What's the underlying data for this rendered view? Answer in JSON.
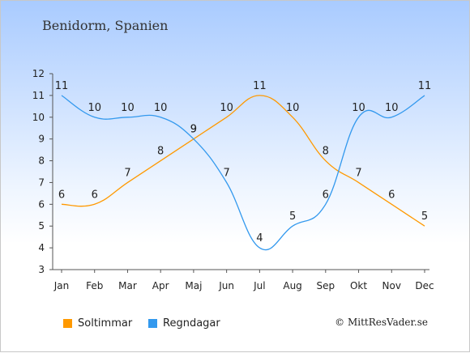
{
  "header": {
    "title": "Benidorm, Spanien"
  },
  "footer": {
    "credit": "© MittResVader.se"
  },
  "colors": {
    "soltimmar": "#ff9900",
    "regndagar": "#3399ee",
    "axis": "#555555",
    "text": "#222222"
  },
  "chart_data": {
    "type": "line",
    "title": "Benidorm, Spanien",
    "xlabel": "",
    "ylabel": "",
    "ylim": [
      3,
      12
    ],
    "yticks": [
      3,
      4,
      5,
      6,
      7,
      8,
      9,
      10,
      11,
      12
    ],
    "grid": false,
    "legend_position": "bottom-left",
    "categories": [
      "Jan",
      "Feb",
      "Mar",
      "Apr",
      "Maj",
      "Jun",
      "Jul",
      "Aug",
      "Sep",
      "Okt",
      "Nov",
      "Dec"
    ],
    "series": [
      {
        "name": "Soltimmar",
        "color": "#ff9900",
        "values": [
          6,
          6,
          7,
          8,
          9,
          10,
          11,
          10,
          8,
          7,
          6,
          5
        ]
      },
      {
        "name": "Regndagar",
        "color": "#3399ee",
        "values": [
          11,
          10,
          10,
          10,
          9,
          7,
          4,
          5,
          6,
          10,
          10,
          11
        ]
      }
    ]
  }
}
